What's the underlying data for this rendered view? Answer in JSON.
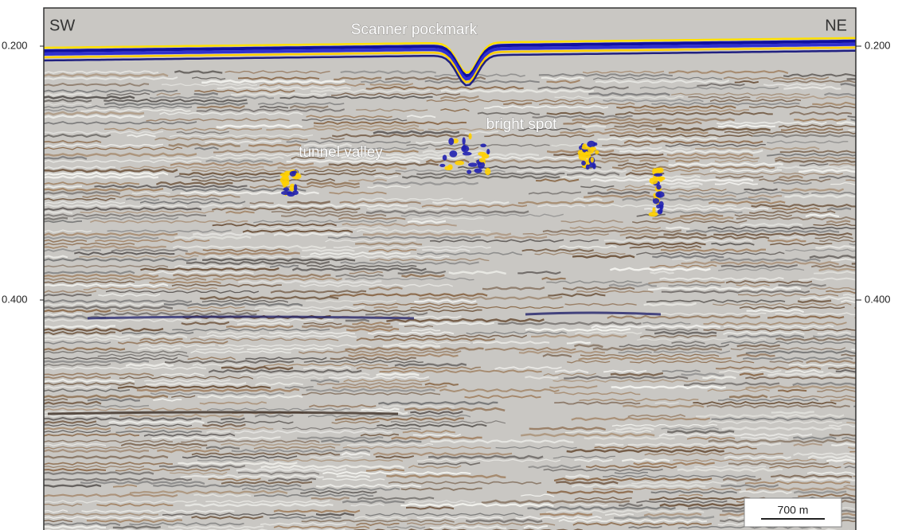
{
  "figure": {
    "direction_left": "SW",
    "direction_right": "NE",
    "annotations": [
      "Scanner pockmark",
      "bright spot",
      "tunnel valley"
    ],
    "left_ticks": [
      "0.200",
      "0.400"
    ],
    "right_ticks": [
      "0.200",
      "0.400"
    ],
    "scale_bar": "700 m"
  }
}
